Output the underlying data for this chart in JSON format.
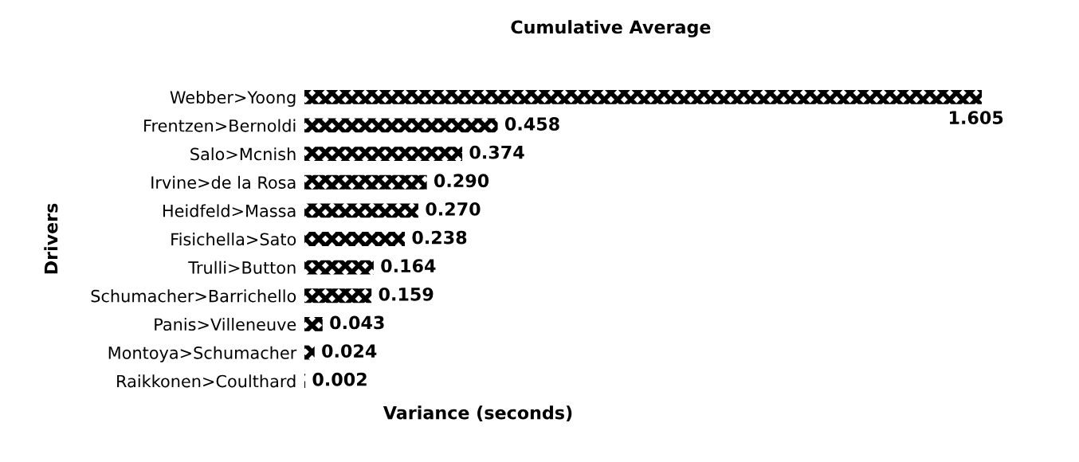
{
  "chart_data": {
    "type": "bar",
    "orientation": "horizontal",
    "title": "Cumulative Average",
    "xlabel": "Variance (seconds)",
    "ylabel": "Drivers",
    "categories": [
      "Webber>Yoong",
      "Frentzen>Bernoldi",
      "Salo>Mcnish",
      "Irvine>de la Rosa",
      "Heidfeld>Massa",
      "Fisichella>Sato",
      "Trulli>Button",
      "Schumacher>Barrichello",
      "Panis>Villeneuve",
      "Montoya>Schumacher",
      "Raikkonen>Coulthard"
    ],
    "values": [
      1.605,
      0.458,
      0.374,
      0.29,
      0.27,
      0.238,
      0.164,
      0.159,
      0.043,
      0.024,
      0.002
    ],
    "value_labels": [
      "1.605",
      "0.458",
      "0.374",
      "0.290",
      "0.270",
      "0.238",
      "0.164",
      "0.159",
      "0.043",
      "0.024",
      "0.002"
    ],
    "color": "#000000",
    "grid": false,
    "legend": false,
    "tick_labels": "y"
  }
}
